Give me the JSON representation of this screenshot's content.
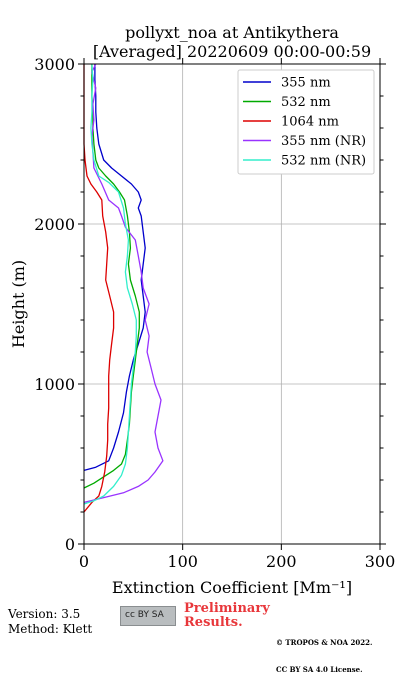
{
  "chart_data": {
    "type": "line",
    "title": "pollyxt_noa at Antikythera",
    "subtitle": "[Averaged] 20220609 00:00-00:59",
    "xlabel": "Extinction Coefficient [Mm⁻¹]",
    "ylabel": "Height (m)",
    "xlim": [
      0,
      300
    ],
    "ylim": [
      0,
      3000
    ],
    "xticks": [
      0,
      100,
      200,
      300
    ],
    "yticks": [
      0,
      1000,
      2000,
      3000
    ],
    "grid": true,
    "legend_position": "top-right",
    "series": [
      {
        "name": "355 nm",
        "color": "#0000cc",
        "points": [
          [
            0,
            460
          ],
          [
            12,
            480
          ],
          [
            25,
            520
          ],
          [
            30,
            600
          ],
          [
            35,
            700
          ],
          [
            40,
            820
          ],
          [
            43,
            950
          ],
          [
            46,
            1050
          ],
          [
            50,
            1150
          ],
          [
            55,
            1250
          ],
          [
            60,
            1350
          ],
          [
            62,
            1450
          ],
          [
            60,
            1550
          ],
          [
            58,
            1650
          ],
          [
            60,
            1750
          ],
          [
            62,
            1850
          ],
          [
            60,
            1950
          ],
          [
            58,
            2050
          ],
          [
            55,
            2100
          ],
          [
            58,
            2150
          ],
          [
            55,
            2200
          ],
          [
            48,
            2250
          ],
          [
            38,
            2300
          ],
          [
            28,
            2350
          ],
          [
            20,
            2400
          ],
          [
            15,
            2500
          ],
          [
            13,
            2600
          ],
          [
            12,
            2700
          ],
          [
            12,
            2800
          ],
          [
            11,
            2900
          ],
          [
            11,
            3000
          ]
        ]
      },
      {
        "name": "532 nm",
        "color": "#00aa00",
        "points": [
          [
            0,
            350
          ],
          [
            10,
            380
          ],
          [
            20,
            420
          ],
          [
            30,
            460
          ],
          [
            38,
            500
          ],
          [
            42,
            560
          ],
          [
            44,
            650
          ],
          [
            46,
            750
          ],
          [
            47,
            850
          ],
          [
            48,
            950
          ],
          [
            50,
            1050
          ],
          [
            52,
            1150
          ],
          [
            54,
            1250
          ],
          [
            56,
            1350
          ],
          [
            56,
            1450
          ],
          [
            52,
            1550
          ],
          [
            47,
            1650
          ],
          [
            45,
            1750
          ],
          [
            47,
            1850
          ],
          [
            46,
            1950
          ],
          [
            44,
            2050
          ],
          [
            41,
            2150
          ],
          [
            36,
            2200
          ],
          [
            30,
            2250
          ],
          [
            22,
            2300
          ],
          [
            15,
            2350
          ],
          [
            12,
            2400
          ],
          [
            10,
            2500
          ],
          [
            9,
            2600
          ],
          [
            9,
            2700
          ],
          [
            8,
            2800
          ],
          [
            8,
            2900
          ],
          [
            8,
            3000
          ]
        ]
      },
      {
        "name": "1064 nm",
        "color": "#dd0000",
        "points": [
          [
            0,
            200
          ],
          [
            8,
            260
          ],
          [
            15,
            300
          ],
          [
            18,
            360
          ],
          [
            21,
            450
          ],
          [
            23,
            550
          ],
          [
            24,
            650
          ],
          [
            24,
            750
          ],
          [
            25,
            850
          ],
          [
            25,
            950
          ],
          [
            25,
            1050
          ],
          [
            26,
            1150
          ],
          [
            28,
            1250
          ],
          [
            30,
            1350
          ],
          [
            30,
            1450
          ],
          [
            26,
            1550
          ],
          [
            22,
            1650
          ],
          [
            23,
            1750
          ],
          [
            24,
            1850
          ],
          [
            22,
            1950
          ],
          [
            19,
            2050
          ],
          [
            18,
            2150
          ],
          [
            13,
            2200
          ],
          [
            7,
            2250
          ],
          [
            3,
            2300
          ],
          [
            1,
            2400
          ],
          [
            0,
            2500
          ],
          [
            0,
            2700
          ],
          [
            0,
            3000
          ]
        ]
      },
      {
        "name": "355 nm (NR)",
        "color": "#9933ff",
        "points": [
          [
            0,
            260
          ],
          [
            20,
            290
          ],
          [
            40,
            320
          ],
          [
            55,
            360
          ],
          [
            65,
            400
          ],
          [
            72,
            450
          ],
          [
            80,
            520
          ],
          [
            75,
            600
          ],
          [
            72,
            700
          ],
          [
            75,
            800
          ],
          [
            78,
            900
          ],
          [
            72,
            1000
          ],
          [
            68,
            1100
          ],
          [
            64,
            1200
          ],
          [
            66,
            1300
          ],
          [
            62,
            1400
          ],
          [
            66,
            1500
          ],
          [
            60,
            1600
          ],
          [
            58,
            1700
          ],
          [
            55,
            1800
          ],
          [
            52,
            1900
          ],
          [
            42,
            1980
          ],
          [
            38,
            2050
          ],
          [
            35,
            2100
          ],
          [
            25,
            2150
          ],
          [
            18,
            2250
          ],
          [
            10,
            2350
          ],
          [
            9,
            2450
          ],
          [
            8,
            2550
          ],
          [
            10,
            2650
          ],
          [
            9,
            2750
          ],
          [
            12,
            2850
          ],
          [
            8,
            2950
          ],
          [
            12,
            3000
          ]
        ]
      },
      {
        "name": "532 nm (NR)",
        "color": "#33eecc",
        "points": [
          [
            0,
            250
          ],
          [
            10,
            270
          ],
          [
            20,
            300
          ],
          [
            30,
            360
          ],
          [
            38,
            430
          ],
          [
            42,
            500
          ],
          [
            44,
            600
          ],
          [
            45,
            700
          ],
          [
            46,
            800
          ],
          [
            47,
            900
          ],
          [
            48,
            1000
          ],
          [
            50,
            1100
          ],
          [
            52,
            1200
          ],
          [
            53,
            1300
          ],
          [
            53,
            1400
          ],
          [
            49,
            1500
          ],
          [
            44,
            1600
          ],
          [
            42,
            1700
          ],
          [
            44,
            1800
          ],
          [
            45,
            1900
          ],
          [
            42,
            2000
          ],
          [
            40,
            2100
          ],
          [
            35,
            2200
          ],
          [
            25,
            2260
          ],
          [
            15,
            2300
          ],
          [
            10,
            2400
          ],
          [
            8,
            2500
          ],
          [
            7,
            2600
          ],
          [
            8,
            2700
          ],
          [
            8,
            2800
          ],
          [
            9,
            2900
          ],
          [
            8,
            3000
          ]
        ]
      }
    ]
  },
  "footer": {
    "version": "Version: 3.5",
    "method": "Method: Klett",
    "preliminary": "Preliminary",
    "results": "Results.",
    "copyright_line1": "© TROPOS & NOA 2022.",
    "copyright_line2": "CC BY SA 4.0 License.",
    "cc_badge": "cc BY SA"
  }
}
